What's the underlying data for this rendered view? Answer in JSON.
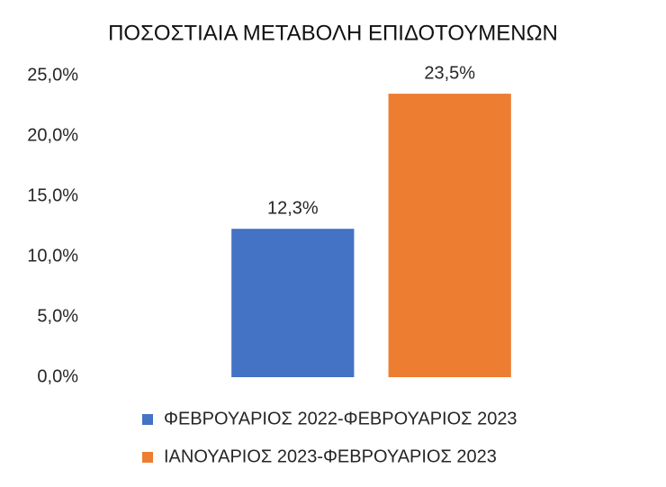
{
  "chart_data": {
    "type": "bar",
    "title": "ΠΟΣΟΣΤΙΑΙΑ ΜΕΤΑΒΟΛΗ ΕΠΙΔΟΤΟΥΜΕΝΩΝ",
    "categories": [
      null
    ],
    "series": [
      {
        "name": "ΦΕΒΡΟΥΑΡΙΟΣ 2022-ΦΕΒΡΟΥΑΡΙΟΣ 2023",
        "color": "#4472c4",
        "values": [
          12.3
        ],
        "value_labels": [
          "12,3%"
        ]
      },
      {
        "name": "ΙΑΝΟΥΑΡΙΟΣ 2023-ΦΕΒΡΟΥΑΡΙΟΣ 2023",
        "color": "#ed7d31",
        "values": [
          23.5
        ],
        "value_labels": [
          "23,5%"
        ]
      }
    ],
    "ylim": [
      0,
      25
    ],
    "yticks": [
      {
        "value": 0,
        "label": "0,0%"
      },
      {
        "value": 5,
        "label": "5,0%"
      },
      {
        "value": 10,
        "label": "10,0%"
      },
      {
        "value": 15,
        "label": "15,0%"
      },
      {
        "value": 20,
        "label": "20,0%"
      },
      {
        "value": 25,
        "label": "25,0%"
      }
    ],
    "grid": false,
    "legend": "bottom"
  }
}
